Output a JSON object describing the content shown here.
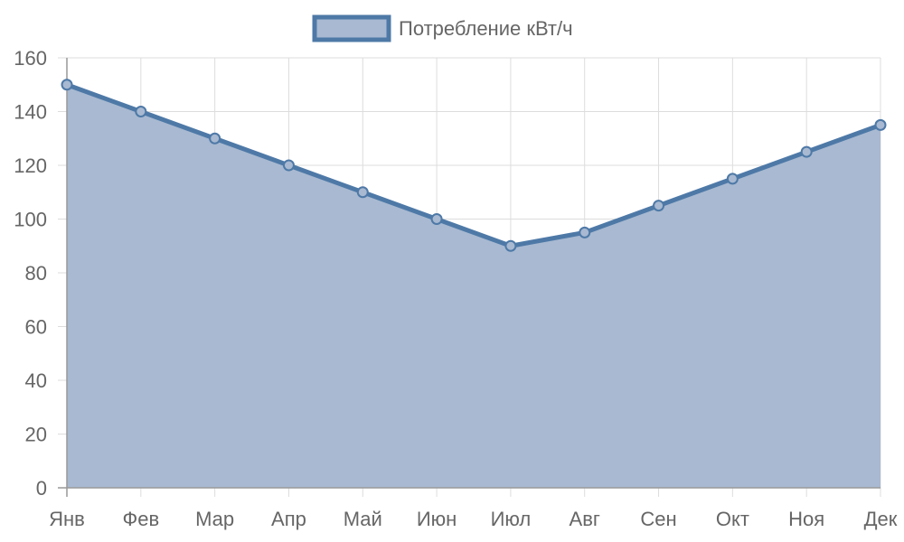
{
  "chart_data": {
    "type": "area",
    "categories": [
      "Янв",
      "Фев",
      "Мар",
      "Апр",
      "Май",
      "Июн",
      "Июл",
      "Авг",
      "Сен",
      "Окт",
      "Ноя",
      "Дек"
    ],
    "series": [
      {
        "name": "Потребление кВт/ч",
        "values": [
          150,
          140,
          130,
          120,
          110,
          100,
          90,
          95,
          105,
          115,
          125,
          135
        ]
      }
    ],
    "ylim": [
      0,
      160
    ],
    "yticks": [
      0,
      20,
      40,
      60,
      80,
      100,
      120,
      140,
      160
    ],
    "grid": true,
    "legend_position": "top",
    "colors": {
      "line": "#4e79a7",
      "fill": "#a8b9d1",
      "grid": "#dddddd",
      "text": "#666666"
    }
  }
}
